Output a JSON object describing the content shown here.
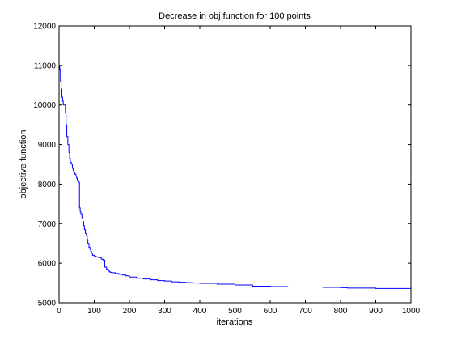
{
  "chart_data": {
    "type": "line",
    "title": "Decrease in obj function for 100 points",
    "xlabel": "iterations",
    "ylabel": "objective function",
    "xlim": [
      0,
      1000
    ],
    "ylim": [
      5000,
      12000
    ],
    "xticks": [
      0,
      100,
      200,
      300,
      400,
      500,
      600,
      700,
      800,
      900,
      1000
    ],
    "yticks": [
      5000,
      6000,
      7000,
      8000,
      9000,
      10000,
      11000,
      12000
    ],
    "grid": false,
    "line_color": "#0000ff",
    "series": [
      {
        "step": true,
        "x": [
          0,
          2,
          4,
          6,
          8,
          10,
          12,
          15,
          18,
          20,
          22,
          25,
          28,
          30,
          32,
          35,
          38,
          40,
          42,
          45,
          48,
          50,
          52,
          55,
          58,
          60,
          62,
          65,
          68,
          70,
          72,
          75,
          78,
          80,
          82,
          85,
          88,
          90,
          92,
          95,
          98,
          100,
          103,
          106,
          110,
          115,
          120,
          125,
          130,
          135,
          140,
          143,
          146,
          150,
          160,
          170,
          180,
          190,
          200,
          220,
          240,
          260,
          280,
          300,
          320,
          340,
          360,
          380,
          400,
          450,
          500,
          550,
          600,
          650,
          700,
          750,
          800,
          820,
          850,
          900,
          950,
          1000
        ],
        "y": [
          11000,
          10900,
          10600,
          10400,
          10200,
          10100,
          10000,
          10000,
          9800,
          9500,
          9200,
          9000,
          8800,
          8650,
          8550,
          8500,
          8400,
          8350,
          8300,
          8250,
          8200,
          8150,
          8100,
          8050,
          7400,
          7300,
          7250,
          7150,
          7050,
          6950,
          6850,
          6750,
          6700,
          6600,
          6500,
          6400,
          6350,
          6300,
          6250,
          6200,
          6200,
          6180,
          6170,
          6160,
          6150,
          6140,
          6100,
          6080,
          5900,
          5850,
          5800,
          5780,
          5770,
          5760,
          5740,
          5720,
          5700,
          5680,
          5650,
          5620,
          5600,
          5580,
          5560,
          5550,
          5530,
          5520,
          5510,
          5500,
          5490,
          5470,
          5450,
          5420,
          5410,
          5400,
          5400,
          5390,
          5380,
          5370,
          5370,
          5360,
          5360,
          5360
        ]
      }
    ]
  }
}
